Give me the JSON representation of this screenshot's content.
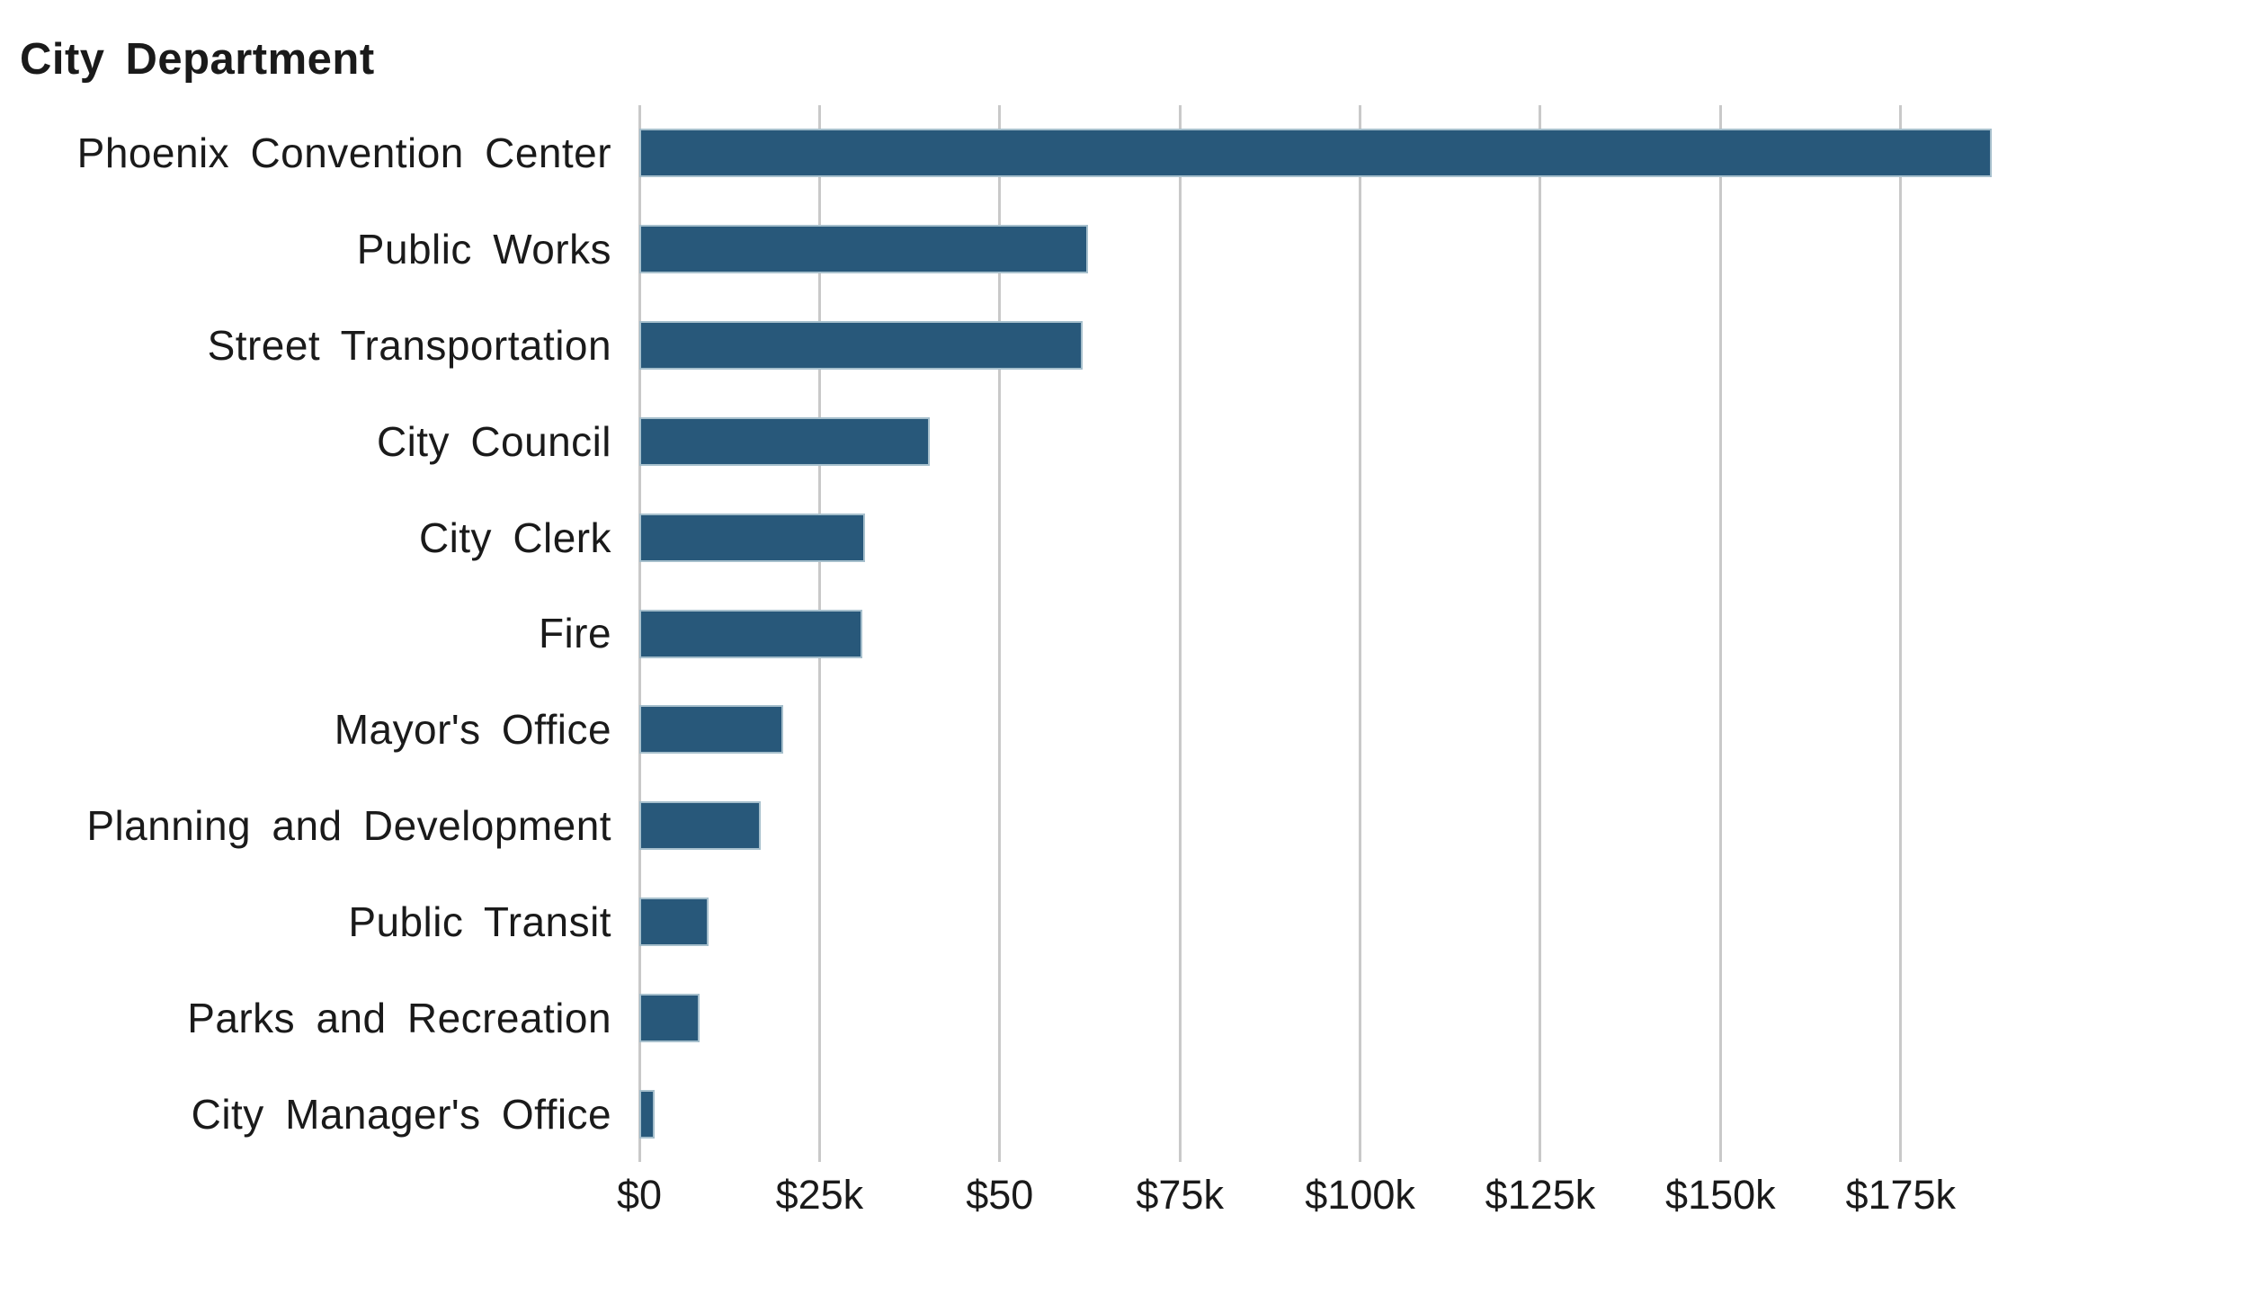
{
  "chart_data": {
    "type": "bar",
    "orientation": "horizontal",
    "title": "City Department",
    "categories": [
      "Phoenix Convention Center",
      "Public Works",
      "Street Transportation",
      "City Council",
      "City Clerk",
      "Fire",
      "Mayor's Office",
      "Planning and Development",
      "Public Transit",
      "Parks and Recreation",
      "City Manager's Office"
    ],
    "values": [
      187600,
      62200,
      61500,
      40300,
      31300,
      30900,
      20000,
      16800,
      9600,
      8400,
      2100
    ],
    "value_unit": "USD",
    "xlim": [
      0,
      190000
    ],
    "x_tick_values": [
      0,
      25000,
      50000,
      75000,
      100000,
      125000,
      150000,
      175000
    ],
    "x_tick_labels": [
      "$0",
      "$25k",
      "$50",
      "$75k",
      "$100k",
      "$125k",
      "$150k",
      "$175k"
    ],
    "grid": true,
    "legend": "none",
    "colors": {
      "bar_fill": "#28587a",
      "bar_stroke": "#a6bfcc",
      "gridline": "#c9c9c9",
      "text": "#1a1a1a",
      "background": "#ffffff"
    }
  }
}
